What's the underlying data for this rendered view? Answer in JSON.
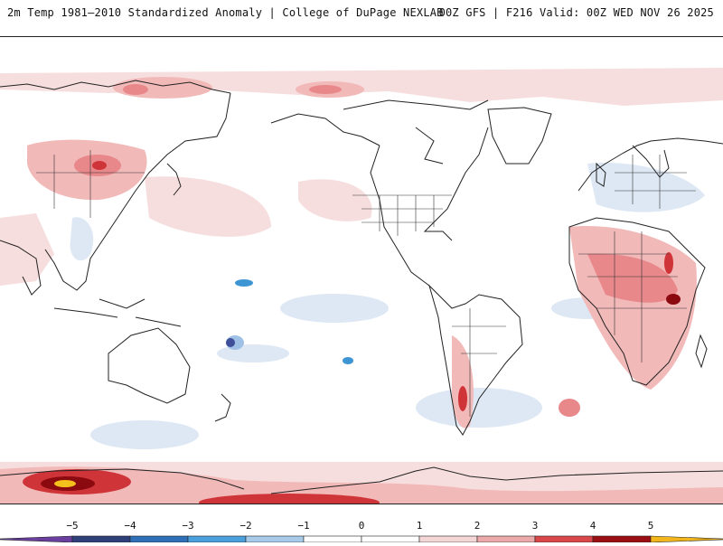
{
  "header": {
    "title_left": "2m Temp 1981–2010 Standardized Anomaly | College of DuPage NEXLAB",
    "title_right": "00Z GFS | F216 Valid: 00Z WED NOV 26 2025"
  },
  "map": {
    "projection": "global equirectangular, Pacific-centered",
    "colors": {
      "pos1": "#f7dede",
      "pos2": "#f2b9b9",
      "pos3": "#e8888b",
      "pos4": "#cf3438",
      "pos5": "#8b0a10",
      "pos6": "#f4c01c",
      "neg1": "#dde8f4",
      "neg2": "#9fc1e6",
      "neg3": "#3e95d4",
      "neg4": "#3f4f9a",
      "coast": "#222222",
      "border": "#333333"
    }
  },
  "colorbar": {
    "ticks": [
      {
        "value": -5,
        "label": "−5"
      },
      {
        "value": -4,
        "label": "−4"
      },
      {
        "value": -3,
        "label": "−3"
      },
      {
        "value": -2,
        "label": "−2"
      },
      {
        "value": -1,
        "label": "−1"
      },
      {
        "value": 0,
        "label": "0"
      },
      {
        "value": 1,
        "label": "1"
      },
      {
        "value": 2,
        "label": "2"
      },
      {
        "value": 3,
        "label": "3"
      },
      {
        "value": 4,
        "label": "4"
      },
      {
        "value": 5,
        "label": "5"
      }
    ],
    "segments": [
      {
        "from": -5.5,
        "to": -5,
        "color": "#6a3fa0"
      },
      {
        "from": -5,
        "to": -4,
        "color": "#2f3f7a"
      },
      {
        "from": -4,
        "to": -3,
        "color": "#2f6fb8"
      },
      {
        "from": -3,
        "to": -2,
        "color": "#4aa0dc"
      },
      {
        "from": -2,
        "to": -1,
        "color": "#a8cbea"
      },
      {
        "from": -1,
        "to": 0,
        "color": "#ffffff"
      },
      {
        "from": 0,
        "to": 1,
        "color": "#ffffff"
      },
      {
        "from": 1,
        "to": 2,
        "color": "#f4d6d6"
      },
      {
        "from": 2,
        "to": 3,
        "color": "#eba9a9"
      },
      {
        "from": 3,
        "to": 4,
        "color": "#d9474a"
      },
      {
        "from": 4,
        "to": 5,
        "color": "#9a0e14"
      },
      {
        "from": 5,
        "to": 5.5,
        "color": "#f2b61c"
      }
    ]
  }
}
